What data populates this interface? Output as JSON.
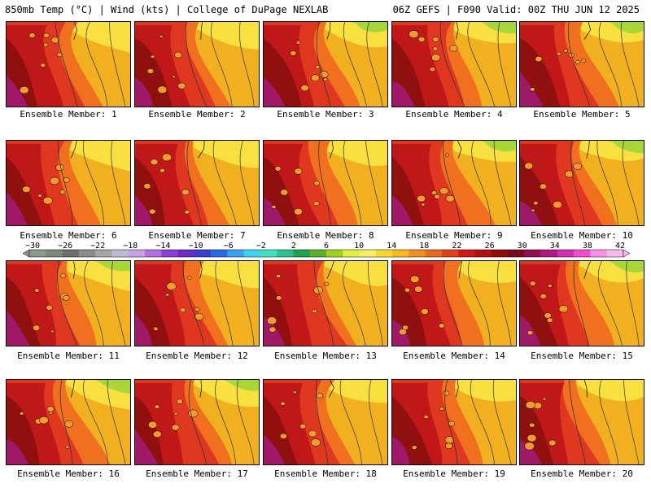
{
  "header": {
    "left_title": "850mb Temp (°C) | Wind (kts) | College of DuPage NEXLAB",
    "right_title": "06Z GEFS | F090 Valid: 00Z THU JUN 12 2025"
  },
  "members": [
    {
      "label": "Ensemble Member: 1"
    },
    {
      "label": "Ensemble Member: 2"
    },
    {
      "label": "Ensemble Member: 3"
    },
    {
      "label": "Ensemble Member: 4"
    },
    {
      "label": "Ensemble Member: 5"
    },
    {
      "label": "Ensemble Member: 6"
    },
    {
      "label": "Ensemble Member: 7"
    },
    {
      "label": "Ensemble Member: 8"
    },
    {
      "label": "Ensemble Member: 9"
    },
    {
      "label": "Ensemble Member: 10"
    },
    {
      "label": "Ensemble Member: 11"
    },
    {
      "label": "Ensemble Member: 12"
    },
    {
      "label": "Ensemble Member: 13"
    },
    {
      "label": "Ensemble Member: 14"
    },
    {
      "label": "Ensemble Member: 15"
    },
    {
      "label": "Ensemble Member: 16"
    },
    {
      "label": "Ensemble Member: 17"
    },
    {
      "label": "Ensemble Member: 18"
    },
    {
      "label": "Ensemble Member: 19"
    },
    {
      "label": "Ensemble Member: 20"
    }
  ],
  "colorbar": {
    "ticks": [
      "−30",
      "−26",
      "−22",
      "−18",
      "−14",
      "−10",
      "−6",
      "−2",
      "2",
      "6",
      "10",
      "14",
      "18",
      "22",
      "26",
      "30",
      "34",
      "38",
      "42"
    ],
    "colors": [
      "#8a9a8a",
      "#7a8a7a",
      "#6e6e6e",
      "#8c8c8c",
      "#a6a6a6",
      "#bcbcd6",
      "#c8a0e6",
      "#b070e0",
      "#8a40d0",
      "#6a2cc0",
      "#3c3cd0",
      "#2a6ae0",
      "#3aa0f0",
      "#40d0f0",
      "#40e0c0",
      "#30c090",
      "#20a050",
      "#60b030",
      "#a0d020",
      "#e0f040",
      "#f8f060",
      "#f8d830",
      "#f8b820",
      "#f09020",
      "#e86820",
      "#e04020",
      "#d01818",
      "#b01010",
      "#900c0c",
      "#780a1a",
      "#901050",
      "#b01880",
      "#d030b0",
      "#f050d0",
      "#f890e8",
      "#f8b8f0"
    ]
  }
}
